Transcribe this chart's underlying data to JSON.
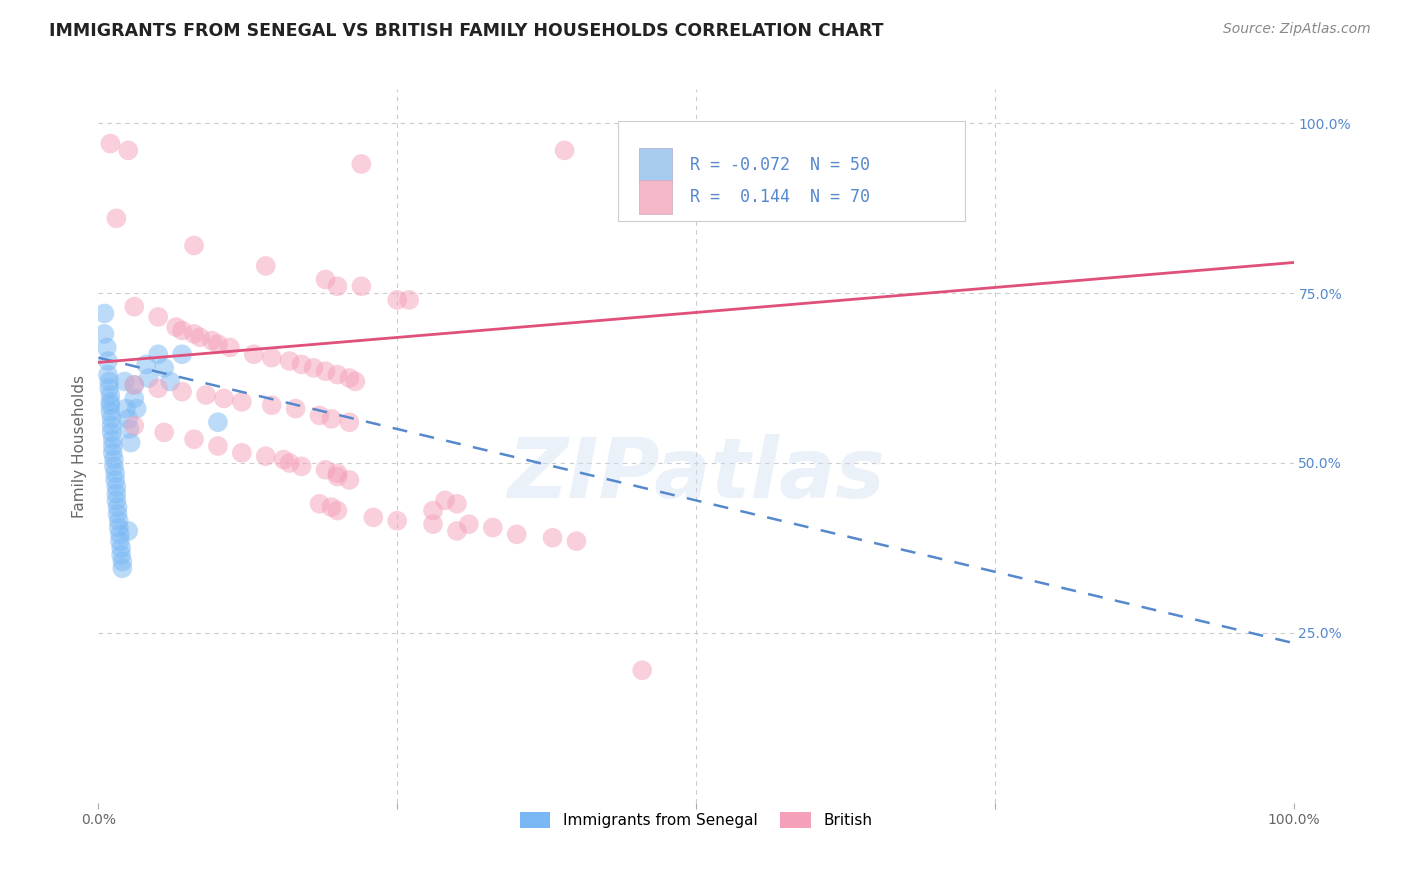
{
  "title": "IMMIGRANTS FROM SENEGAL VS BRITISH FAMILY HOUSEHOLDS CORRELATION CHART",
  "source": "Source: ZipAtlas.com",
  "ylabel": "Family Households",
  "watermark": "ZIPatlas",
  "xlim": [
    0.0,
    1.0
  ],
  "ylim": [
    0.0,
    1.05
  ],
  "xtick_positions": [
    0.0,
    0.25,
    0.5,
    0.75,
    1.0
  ],
  "xtick_labels": [
    "0.0%",
    "",
    "",
    "",
    "100.0%"
  ],
  "ytick_right_positions": [
    0.25,
    0.5,
    0.75,
    1.0
  ],
  "ytick_right_labels": [
    "25.0%",
    "50.0%",
    "75.0%",
    "100.0%"
  ],
  "blue_dots": [
    [
      0.005,
      0.72
    ],
    [
      0.005,
      0.69
    ],
    [
      0.007,
      0.67
    ],
    [
      0.008,
      0.65
    ],
    [
      0.008,
      0.63
    ],
    [
      0.009,
      0.62
    ],
    [
      0.009,
      0.61
    ],
    [
      0.01,
      0.6
    ],
    [
      0.01,
      0.59
    ],
    [
      0.01,
      0.585
    ],
    [
      0.01,
      0.575
    ],
    [
      0.011,
      0.565
    ],
    [
      0.011,
      0.555
    ],
    [
      0.011,
      0.545
    ],
    [
      0.012,
      0.535
    ],
    [
      0.012,
      0.525
    ],
    [
      0.012,
      0.515
    ],
    [
      0.013,
      0.505
    ],
    [
      0.013,
      0.495
    ],
    [
      0.014,
      0.485
    ],
    [
      0.014,
      0.475
    ],
    [
      0.015,
      0.465
    ],
    [
      0.015,
      0.455
    ],
    [
      0.015,
      0.445
    ],
    [
      0.016,
      0.435
    ],
    [
      0.016,
      0.425
    ],
    [
      0.017,
      0.415
    ],
    [
      0.017,
      0.405
    ],
    [
      0.018,
      0.395
    ],
    [
      0.018,
      0.385
    ],
    [
      0.019,
      0.375
    ],
    [
      0.019,
      0.365
    ],
    [
      0.02,
      0.355
    ],
    [
      0.02,
      0.345
    ],
    [
      0.022,
      0.62
    ],
    [
      0.023,
      0.58
    ],
    [
      0.025,
      0.565
    ],
    [
      0.026,
      0.55
    ],
    [
      0.027,
      0.53
    ],
    [
      0.03,
      0.615
    ],
    [
      0.03,
      0.595
    ],
    [
      0.032,
      0.58
    ],
    [
      0.04,
      0.645
    ],
    [
      0.042,
      0.625
    ],
    [
      0.05,
      0.66
    ],
    [
      0.055,
      0.64
    ],
    [
      0.06,
      0.62
    ],
    [
      0.07,
      0.66
    ],
    [
      0.1,
      0.56
    ],
    [
      0.025,
      0.4
    ]
  ],
  "pink_dots": [
    [
      0.01,
      0.97
    ],
    [
      0.025,
      0.96
    ],
    [
      0.22,
      0.94
    ],
    [
      0.39,
      0.96
    ],
    [
      0.015,
      0.86
    ],
    [
      0.08,
      0.82
    ],
    [
      0.14,
      0.79
    ],
    [
      0.19,
      0.77
    ],
    [
      0.2,
      0.76
    ],
    [
      0.22,
      0.76
    ],
    [
      0.25,
      0.74
    ],
    [
      0.26,
      0.74
    ],
    [
      0.03,
      0.73
    ],
    [
      0.05,
      0.715
    ],
    [
      0.065,
      0.7
    ],
    [
      0.07,
      0.695
    ],
    [
      0.08,
      0.69
    ],
    [
      0.085,
      0.685
    ],
    [
      0.095,
      0.68
    ],
    [
      0.1,
      0.675
    ],
    [
      0.11,
      0.67
    ],
    [
      0.13,
      0.66
    ],
    [
      0.145,
      0.655
    ],
    [
      0.16,
      0.65
    ],
    [
      0.17,
      0.645
    ],
    [
      0.18,
      0.64
    ],
    [
      0.19,
      0.635
    ],
    [
      0.2,
      0.63
    ],
    [
      0.21,
      0.625
    ],
    [
      0.215,
      0.62
    ],
    [
      0.03,
      0.615
    ],
    [
      0.05,
      0.61
    ],
    [
      0.07,
      0.605
    ],
    [
      0.09,
      0.6
    ],
    [
      0.105,
      0.595
    ],
    [
      0.12,
      0.59
    ],
    [
      0.145,
      0.585
    ],
    [
      0.165,
      0.58
    ],
    [
      0.185,
      0.57
    ],
    [
      0.195,
      0.565
    ],
    [
      0.21,
      0.56
    ],
    [
      0.03,
      0.555
    ],
    [
      0.055,
      0.545
    ],
    [
      0.08,
      0.535
    ],
    [
      0.1,
      0.525
    ],
    [
      0.12,
      0.515
    ],
    [
      0.14,
      0.51
    ],
    [
      0.155,
      0.505
    ],
    [
      0.16,
      0.5
    ],
    [
      0.17,
      0.495
    ],
    [
      0.19,
      0.49
    ],
    [
      0.2,
      0.485
    ],
    [
      0.2,
      0.48
    ],
    [
      0.21,
      0.475
    ],
    [
      0.185,
      0.44
    ],
    [
      0.195,
      0.435
    ],
    [
      0.2,
      0.43
    ],
    [
      0.29,
      0.445
    ],
    [
      0.3,
      0.44
    ],
    [
      0.28,
      0.43
    ],
    [
      0.23,
      0.42
    ],
    [
      0.25,
      0.415
    ],
    [
      0.28,
      0.41
    ],
    [
      0.31,
      0.41
    ],
    [
      0.33,
      0.405
    ],
    [
      0.3,
      0.4
    ],
    [
      0.35,
      0.395
    ],
    [
      0.38,
      0.39
    ],
    [
      0.4,
      0.385
    ],
    [
      0.455,
      0.195
    ]
  ],
  "blue_line_x": [
    0.0,
    1.0
  ],
  "blue_line_y": [
    0.655,
    0.235
  ],
  "pink_line_x": [
    0.0,
    1.0
  ],
  "pink_line_y": [
    0.648,
    0.795
  ],
  "dot_size": 200,
  "dot_alpha": 0.5,
  "blue_dot_color": "#7ab8f5",
  "pink_dot_color": "#f4a0b8",
  "blue_line_color": "#5588cc",
  "pink_line_color": "#e0507a",
  "grid_color": "#cccccc",
  "grid_linestyle": "--",
  "background_color": "#ffffff",
  "title_color": "#222222",
  "title_fontsize": 12.5,
  "source_color": "#888888",
  "source_fontsize": 10,
  "axis_label_fontsize": 11,
  "tick_fontsize": 10,
  "right_tick_color": "#5588cc",
  "watermark_color": "#ccddf0",
  "watermark_fontsize": 60,
  "watermark_alpha": 0.4,
  "legend_blue_color": "#a8ccf0",
  "legend_pink_color": "#f4b8c8",
  "legend_text_color": "#5588cc",
  "legend_r_blue": "R = -0.072",
  "legend_r_pink": "R =  0.144",
  "legend_n_blue": "N = 50",
  "legend_n_pink": "N = 70",
  "bottom_legend_blue": "Immigrants from Senegal",
  "bottom_legend_pink": "British"
}
